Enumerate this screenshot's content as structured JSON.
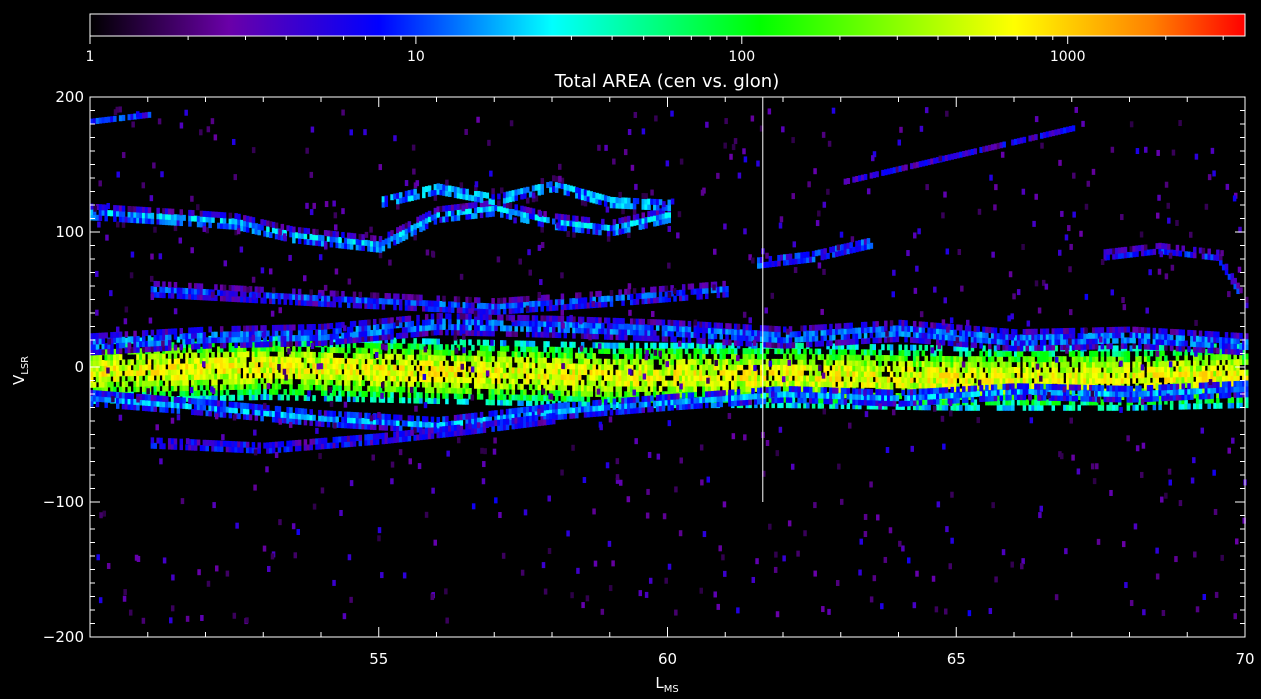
{
  "chart_data": {
    "type": "heatmap",
    "title": "Total AREA (cen vs. glon)",
    "xlabel": "L",
    "xlabel_sub": "MS",
    "ylabel": "V",
    "ylabel_sub": "LSR",
    "xlim": [
      50,
      70
    ],
    "ylim": [
      -200,
      200
    ],
    "x_ticks": [
      {
        "value": 55,
        "label": "55"
      },
      {
        "value": 60,
        "label": "60"
      },
      {
        "value": 65,
        "label": "65"
      },
      {
        "value": 70,
        "label": "70"
      }
    ],
    "y_ticks": [
      {
        "value": 200,
        "label": "200"
      },
      {
        "value": 100,
        "label": "100"
      },
      {
        "value": 0,
        "label": "0"
      },
      {
        "value": -100,
        "label": "−100"
      },
      {
        "value": -200,
        "label": "−200"
      }
    ],
    "colorbar": {
      "scale": "log",
      "range": [
        1,
        3500
      ],
      "ticks": [
        {
          "value": 1,
          "label": "1"
        },
        {
          "value": 10,
          "label": "10"
        },
        {
          "value": 100,
          "label": "100"
        },
        {
          "value": 1000,
          "label": "1000"
        }
      ],
      "colormap": [
        "#000000",
        "#6a00a8",
        "#0000ff",
        "#00ffff",
        "#00ff00",
        "#ffff00",
        "#ff0000"
      ]
    },
    "vertical_marker_x": 61.65,
    "features": [
      {
        "name": "main band",
        "points": [
          [
            50,
            -5
          ],
          [
            53,
            -2
          ],
          [
            56,
            -5
          ],
          [
            59,
            -8
          ],
          [
            62,
            -8
          ],
          [
            65,
            -10
          ],
          [
            68,
            -10
          ],
          [
            70,
            -8
          ]
        ],
        "width": 22,
        "value": 600
      },
      {
        "name": "lower arm",
        "points": [
          [
            50,
            -25
          ],
          [
            52,
            -32
          ],
          [
            54,
            -40
          ],
          [
            56,
            -45
          ],
          [
            58,
            -35
          ],
          [
            60,
            -28
          ],
          [
            62,
            -22
          ],
          [
            64,
            -25
          ],
          [
            66,
            -20
          ],
          [
            68,
            -22
          ],
          [
            70,
            -18
          ]
        ],
        "width": 8,
        "value": 15
      },
      {
        "name": "deep lower arm",
        "points": [
          [
            51,
            -58
          ],
          [
            53,
            -62
          ],
          [
            55,
            -55
          ],
          [
            56.5,
            -48
          ],
          [
            58,
            -40
          ]
        ],
        "width": 6,
        "value": 8
      },
      {
        "name": "upper arm",
        "points": [
          [
            50,
            15
          ],
          [
            52,
            20
          ],
          [
            54,
            22
          ],
          [
            56,
            30
          ],
          [
            58,
            28
          ],
          [
            60,
            25
          ],
          [
            62,
            20
          ],
          [
            64,
            25
          ],
          [
            66,
            18
          ],
          [
            68,
            20
          ],
          [
            70,
            15
          ]
        ],
        "width": 10,
        "value": 12
      },
      {
        "name": "mid arm",
        "points": [
          [
            51,
            55
          ],
          [
            54,
            48
          ],
          [
            57,
            42
          ],
          [
            59,
            48
          ],
          [
            61,
            55
          ]
        ],
        "width": 7,
        "value": 10
      },
      {
        "name": "high arc 1",
        "points": [
          [
            50,
            112
          ],
          [
            51.5,
            108
          ],
          [
            52.5,
            105
          ],
          [
            53.5,
            95
          ],
          [
            55,
            88
          ],
          [
            56,
            110
          ],
          [
            57,
            115
          ],
          [
            58,
            105
          ],
          [
            59,
            100
          ],
          [
            60,
            110
          ]
        ],
        "width": 7,
        "value": 18
      },
      {
        "name": "high arc 2",
        "points": [
          [
            55,
            120
          ],
          [
            56,
            130
          ],
          [
            57,
            122
          ],
          [
            58,
            132
          ],
          [
            59,
            120
          ],
          [
            60,
            118
          ]
        ],
        "width": 6,
        "value": 20
      },
      {
        "name": "right arc",
        "points": [
          [
            61.5,
            75
          ],
          [
            62.5,
            80
          ],
          [
            63.5,
            90
          ]
        ],
        "width": 6,
        "value": 12
      },
      {
        "name": "top arc",
        "points": [
          [
            63,
            135
          ],
          [
            64,
            145
          ],
          [
            65,
            155
          ],
          [
            66,
            165
          ],
          [
            67,
            175
          ]
        ],
        "width": 4,
        "value": 5
      },
      {
        "name": "top left",
        "points": [
          [
            50,
            180
          ],
          [
            51,
            185
          ]
        ],
        "width": 4,
        "value": 8
      },
      {
        "name": "far right arcs",
        "points": [
          [
            67.5,
            80
          ],
          [
            68.5,
            85
          ],
          [
            69.5,
            80
          ],
          [
            70,
            45
          ]
        ],
        "width": 5,
        "value": 8
      }
    ]
  }
}
